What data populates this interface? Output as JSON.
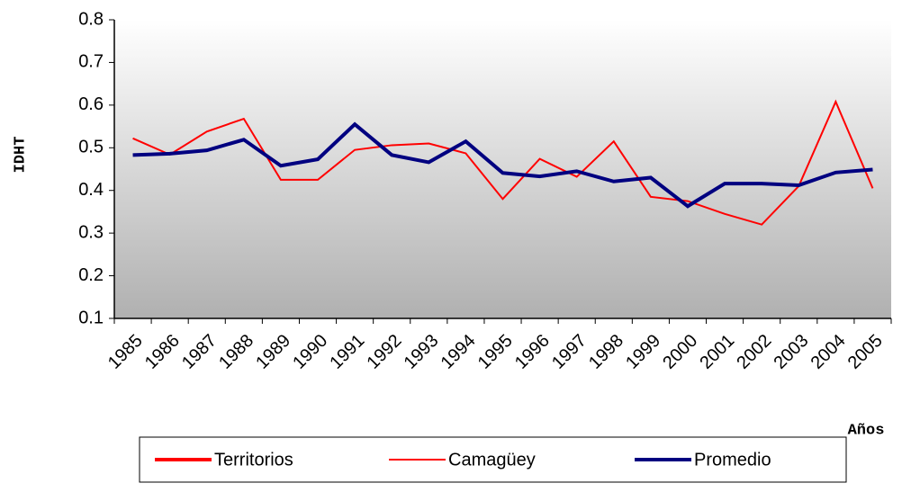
{
  "chart_data": {
    "type": "line",
    "xlabel": "Años",
    "ylabel": "IDHT",
    "categories": [
      "1985",
      "1986",
      "1987",
      "1988",
      "1989",
      "1990",
      "1991",
      "1992",
      "1993",
      "1994",
      "1995",
      "1996",
      "1997",
      "1998",
      "1999",
      "2000",
      "2001",
      "2002",
      "2003",
      "2004",
      "2005"
    ],
    "series": [
      {
        "name": "Territorios",
        "color": "#ff0000",
        "width": 4,
        "values": [
          null,
          null,
          null,
          null,
          null,
          null,
          null,
          null,
          null,
          null,
          null,
          null,
          null,
          null,
          null,
          null,
          null,
          null,
          null,
          null,
          null
        ]
      },
      {
        "name": "Camagüey",
        "color": "#ff0000",
        "width": 2,
        "values": [
          0.522,
          0.484,
          0.538,
          0.568,
          0.425,
          0.425,
          0.495,
          0.506,
          0.51,
          0.487,
          0.38,
          0.474,
          0.432,
          0.515,
          0.385,
          0.375,
          0.345,
          0.32,
          0.41,
          0.608,
          0.405
        ]
      },
      {
        "name": "Promedio",
        "color": "#000080",
        "width": 4,
        "values": [
          0.483,
          0.486,
          0.494,
          0.519,
          0.458,
          0.473,
          0.555,
          0.483,
          0.466,
          0.515,
          0.441,
          0.433,
          0.445,
          0.421,
          0.43,
          0.363,
          0.416,
          0.416,
          0.412,
          0.442,
          0.449
        ]
      }
    ],
    "ylim": [
      0.1,
      0.8
    ],
    "yticks": [
      0.1,
      0.2,
      0.3,
      0.4,
      0.5,
      0.6,
      0.7,
      0.8
    ],
    "legend": "bottom"
  }
}
